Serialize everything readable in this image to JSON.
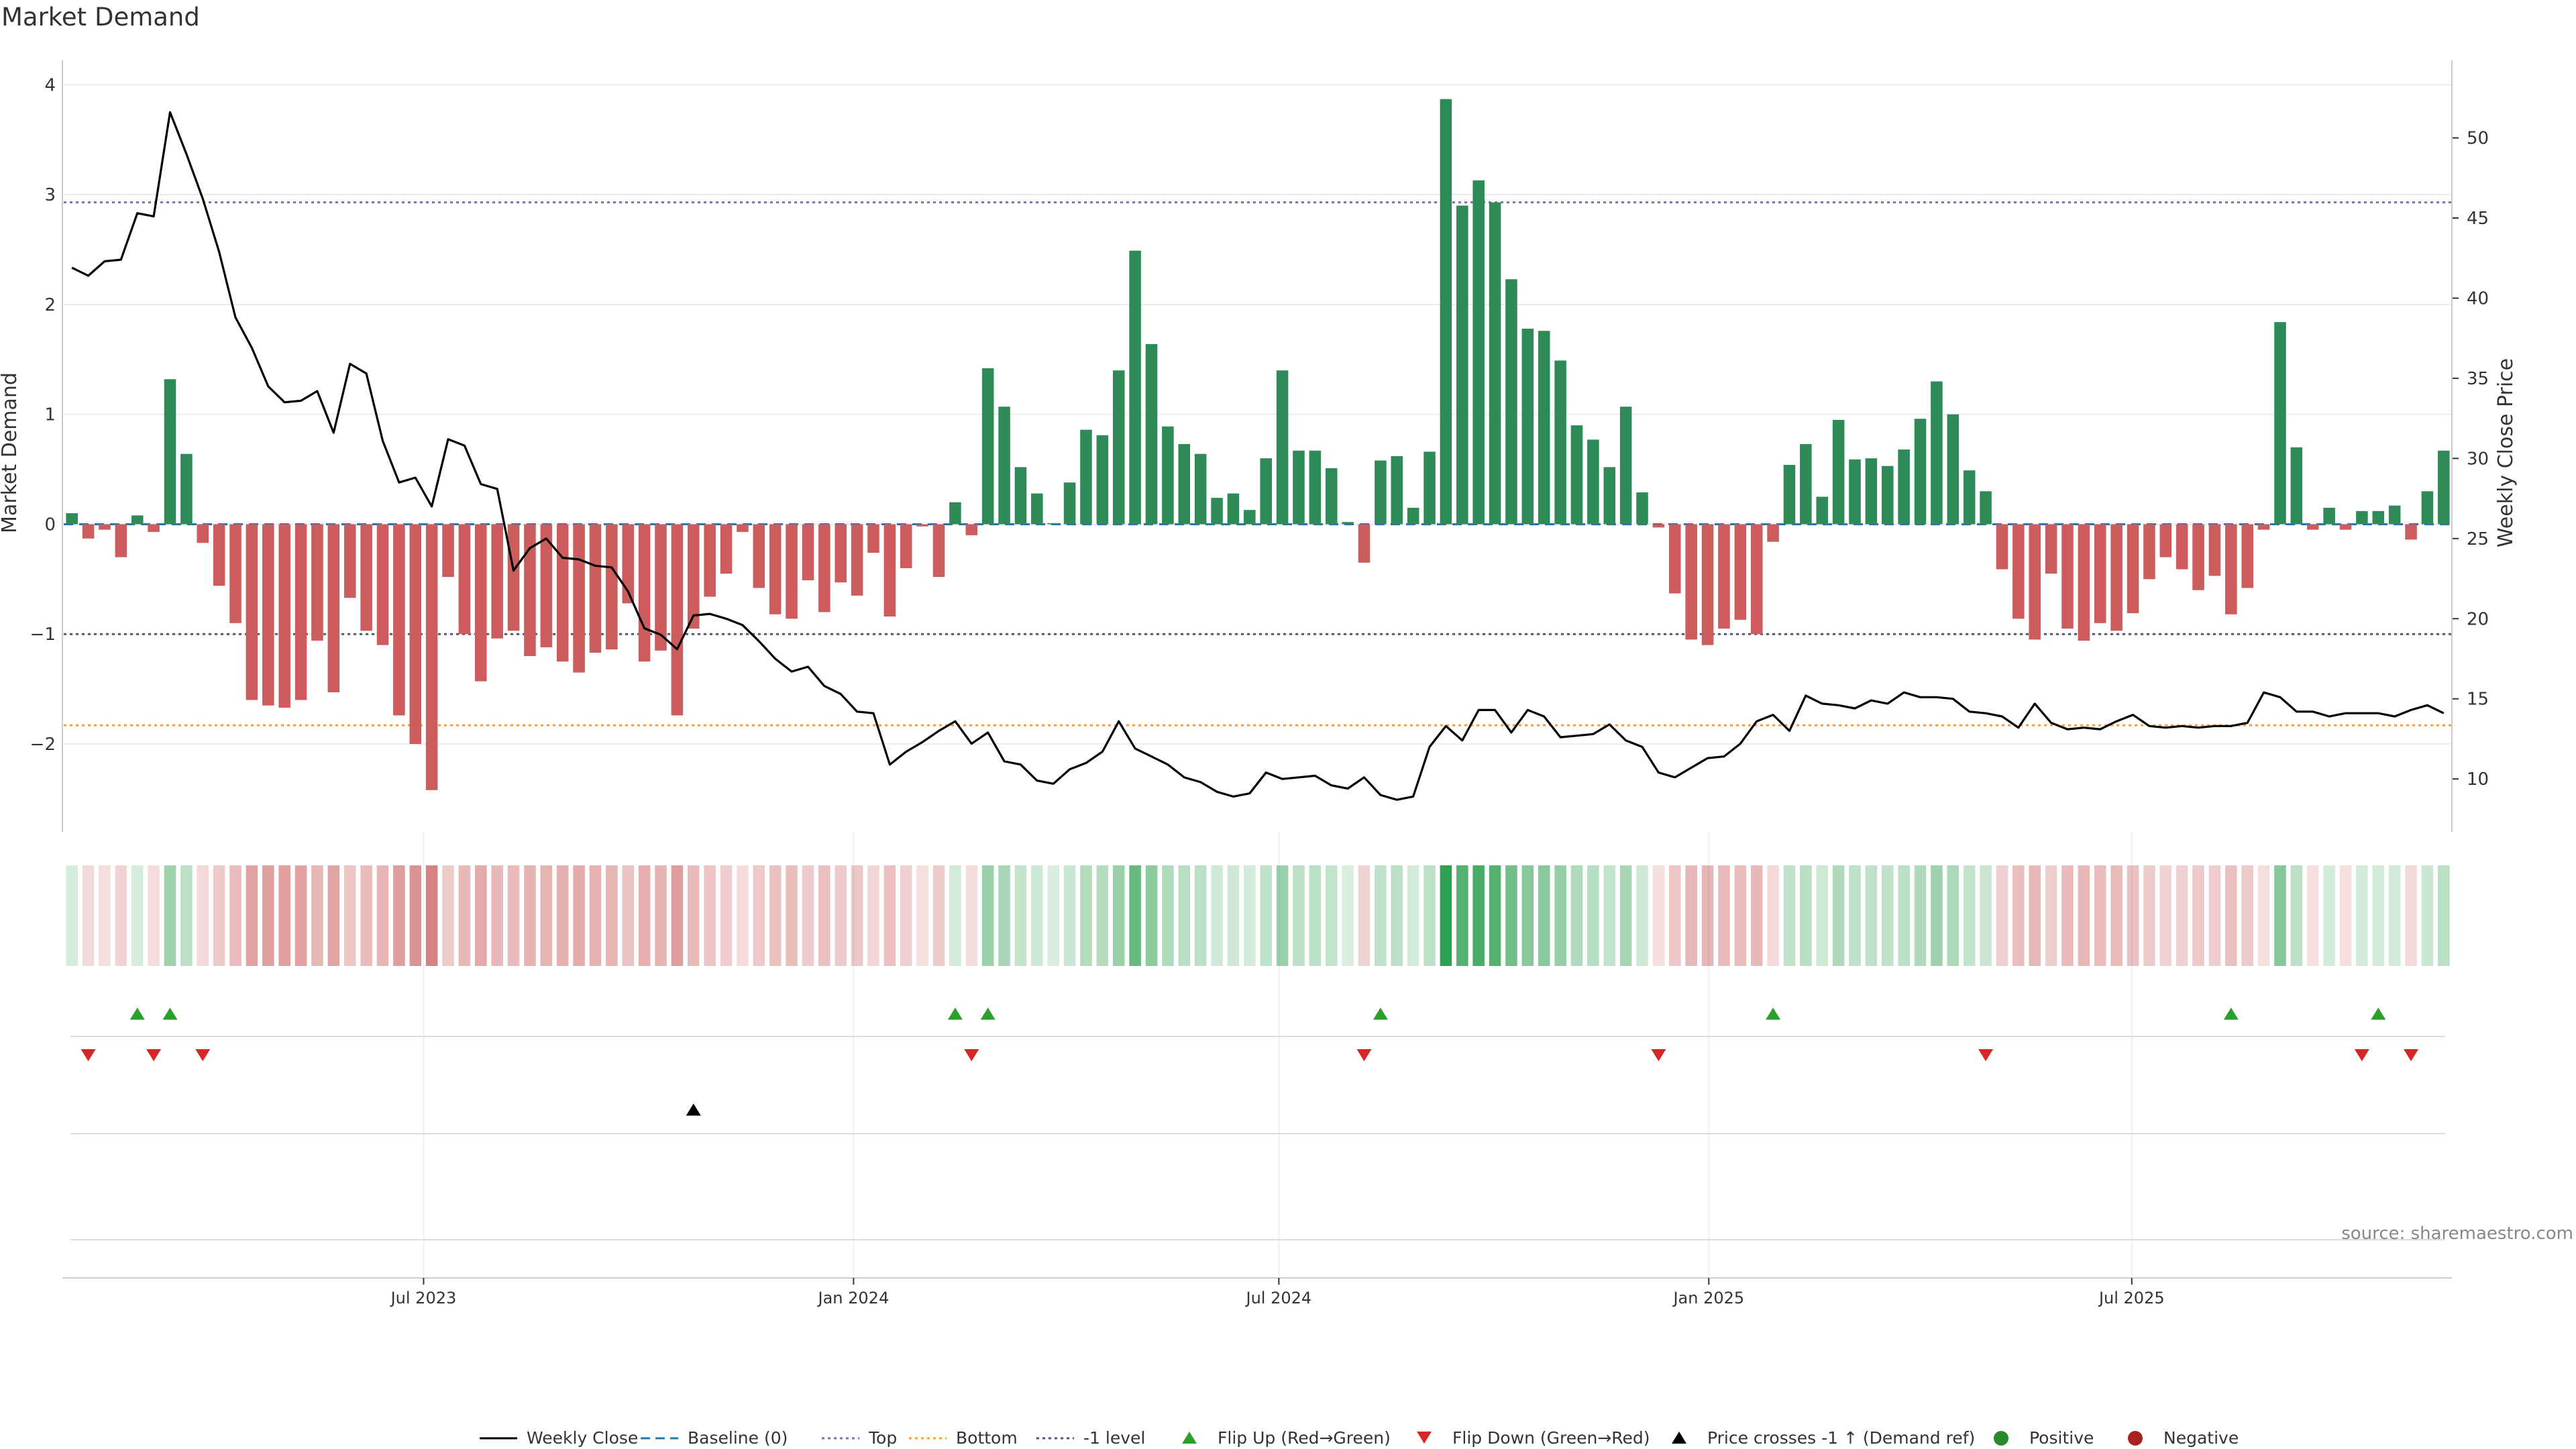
{
  "title": "Market Demand",
  "source": "source: sharemaestro.com",
  "chart_data": {
    "type": "bar",
    "title": "Market Demand",
    "ylabel_left": "Market Demand",
    "ylabel_right": "Weekly Close Price",
    "ylim_left": [
      -2.8,
      4.1
    ],
    "ylim_right": [
      6.7,
      54
    ],
    "yticks_left": [
      -2,
      -1,
      0,
      1,
      2,
      3,
      4
    ],
    "yticks_right": [
      10,
      15,
      20,
      25,
      30,
      35,
      40,
      45,
      50
    ],
    "xticks": [
      "Jul 2023",
      "Jan 2024",
      "Jul 2024",
      "Jan 2025",
      "Jul 2025"
    ],
    "start_date": "2023-01-28",
    "reference_lines": [
      {
        "name": "Baseline (0)",
        "value": 0,
        "color": "#1f77b4",
        "dash": "dashed"
      },
      {
        "name": "Top",
        "value": 2.93,
        "color": "#7a6fb0",
        "dash": "dotted"
      },
      {
        "name": "Bottom",
        "value": -1.83,
        "color": "#ff9a2e",
        "dash": "dotted"
      },
      {
        "name": "-1 level",
        "value": -1,
        "color": "#555577",
        "dash": "dotted"
      }
    ],
    "demand": [
      0.1,
      -0.13,
      -0.05,
      -0.3,
      0.08,
      -0.07,
      1.32,
      0.64,
      -0.17,
      -0.56,
      -0.9,
      -1.6,
      -1.65,
      -1.67,
      -1.6,
      -1.06,
      -1.53,
      -0.67,
      -0.97,
      -1.1,
      -1.74,
      -2.0,
      -2.42,
      -0.48,
      -1.0,
      -1.43,
      -1.04,
      -0.97,
      -1.2,
      -1.12,
      -1.25,
      -1.35,
      -1.17,
      -1.14,
      -0.72,
      -1.25,
      -1.15,
      -1.74,
      -0.95,
      -0.66,
      -0.45,
      -0.07,
      -0.58,
      -0.82,
      -0.86,
      -0.51,
      -0.8,
      -0.53,
      -0.65,
      -0.26,
      -0.84,
      -0.4,
      -0.02,
      -0.48,
      0.2,
      -0.1,
      1.42,
      1.07,
      0.52,
      0.28,
      0.01,
      0.38,
      0.86,
      0.81,
      1.4,
      2.49,
      1.64,
      0.89,
      0.73,
      0.64,
      0.24,
      0.28,
      0.13,
      0.6,
      1.4,
      0.67,
      0.67,
      0.51,
      0.02,
      -0.35,
      0.58,
      0.62,
      0.15,
      0.66,
      3.87,
      2.9,
      3.13,
      2.93,
      2.23,
      1.78,
      1.76,
      1.49,
      0.9,
      0.77,
      0.52,
      1.07,
      0.29,
      -0.03,
      -0.63,
      -1.05,
      -1.1,
      -0.95,
      -0.87,
      -1.0,
      -0.16,
      0.54,
      0.73,
      0.25,
      0.95,
      0.59,
      0.6,
      0.53,
      0.68,
      0.96,
      1.3,
      1.0,
      0.49,
      0.3,
      -0.41,
      -0.86,
      -1.05,
      -0.45,
      -0.95,
      -1.06,
      -0.9,
      -0.97,
      -0.81,
      -0.5,
      -0.3,
      -0.41,
      -0.6,
      -0.47,
      -0.82,
      -0.58,
      -0.05,
      1.84,
      0.7,
      -0.05,
      0.15,
      -0.05,
      0.12,
      0.12,
      0.17,
      -0.14,
      0.3,
      0.67
    ],
    "weekly_close": [
      41.9,
      41.4,
      42.3,
      42.4,
      45.3,
      45.1,
      51.6,
      49.0,
      46.2,
      42.9,
      38.8,
      36.9,
      34.5,
      33.5,
      33.6,
      34.2,
      31.6,
      35.9,
      35.3,
      31.1,
      28.5,
      28.8,
      27.0,
      31.2,
      30.8,
      28.4,
      28.1,
      23.0,
      24.4,
      25.0,
      23.8,
      23.7,
      23.3,
      23.2,
      21.7,
      19.4,
      19.0,
      18.1,
      20.2,
      20.3,
      20.0,
      19.6,
      18.6,
      17.5,
      16.7,
      17.0,
      15.8,
      15.3,
      14.2,
      14.1,
      10.9,
      11.7,
      12.3,
      13.0,
      13.6,
      12.2,
      12.9,
      11.1,
      10.9,
      9.9,
      9.7,
      10.6,
      11.0,
      11.7,
      13.6,
      11.9,
      11.4,
      10.9,
      10.1,
      9.8,
      9.2,
      8.9,
      9.1,
      10.4,
      10.0,
      10.1,
      10.2,
      9.6,
      9.4,
      10.1,
      9.0,
      8.7,
      8.9,
      12.0,
      13.3,
      12.4,
      14.3,
      14.3,
      12.9,
      14.3,
      13.9,
      12.6,
      12.7,
      12.8,
      13.4,
      12.4,
      12.0,
      10.4,
      10.1,
      10.7,
      11.3,
      11.4,
      12.2,
      13.6,
      14.0,
      13.0,
      15.2,
      14.7,
      14.6,
      14.4,
      14.9,
      14.7,
      15.4,
      15.1,
      15.1,
      15.0,
      14.2,
      14.1,
      13.9,
      13.2,
      14.7,
      13.5,
      13.1,
      13.2,
      13.1,
      13.6,
      14.0,
      13.3,
      13.2,
      13.3,
      13.2,
      13.3,
      13.3,
      13.5,
      15.4,
      15.1,
      14.2,
      14.2,
      13.9,
      14.1,
      14.1,
      14.1,
      13.9,
      14.3,
      14.6,
      14.1
    ],
    "flip_up": [
      4,
      6,
      54,
      56,
      80,
      104,
      132,
      141
    ],
    "flip_down": [
      1,
      5,
      8,
      55,
      79,
      97,
      117,
      140,
      143
    ],
    "price_cross_up": [
      38
    ],
    "legend": [
      {
        "label": "Weekly Close",
        "kind": "line",
        "color": "#000000"
      },
      {
        "label": "Baseline (0)",
        "kind": "dash",
        "color": "#1f77b4"
      },
      {
        "label": "Top",
        "kind": "dot",
        "color": "#7a6fb0"
      },
      {
        "label": "Bottom",
        "kind": "dot",
        "color": "#ff9a2e"
      },
      {
        "label": "-1 level",
        "kind": "dot",
        "color": "#555577"
      },
      {
        "label": "Flip Up (Red→Green)",
        "kind": "tri-up",
        "color": "#2ca02c"
      },
      {
        "label": "Flip Down (Green→Red)",
        "kind": "tri-down",
        "color": "#d62728"
      },
      {
        "label": "Price crosses -1 ↑ (Demand ref)",
        "kind": "tri-up",
        "color": "#000000"
      },
      {
        "label": "Positive",
        "kind": "dot-marker",
        "color": "#2a8a2a"
      },
      {
        "label": "Negative",
        "kind": "dot-marker",
        "color": "#a82222"
      }
    ],
    "colors": {
      "positive": "#2e8b57",
      "negative": "#cd5c5c"
    }
  }
}
